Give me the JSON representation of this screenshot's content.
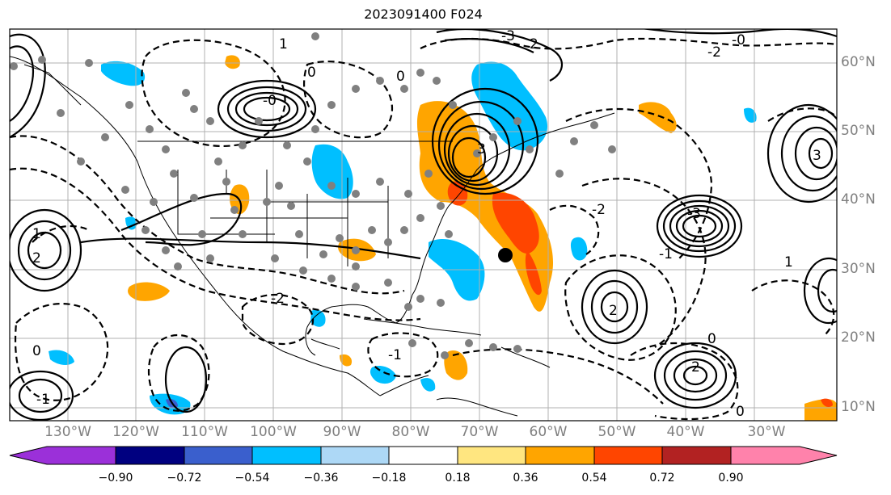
{
  "title": "2023091400 F024",
  "lat_labels": [
    "60°N",
    "50°N",
    "40°N",
    "30°N",
    "20°N",
    "10°N"
  ],
  "lon_labels": [
    "130°W",
    "120°W",
    "110°W",
    "100°W",
    "90°W",
    "80°W",
    "70°W",
    "60°W",
    "50°W",
    "40°W",
    "30°W"
  ],
  "contour_labels": {
    "c1": "0",
    "c2": "0",
    "c3": "-0",
    "c4": "-2",
    "c5": "2",
    "c6": "-3",
    "c7": "3",
    "c8": "-2",
    "c9": "1",
    "c10": "-1",
    "c11": "0",
    "c12": "0",
    "c13": "-2",
    "c14": "2",
    "c15": "-3",
    "c16": "-1",
    "c17": "2",
    "c18": "0",
    "c19": "2",
    "c20": "-0",
    "c21": "1",
    "c22": "1",
    "c23": "3",
    "c24": "-1"
  },
  "colorbar": {
    "colors": [
      "#9b30d9",
      "#000080",
      "#3a5fcd",
      "#00bfff",
      "#add8f6",
      "#ffffff",
      "#ffe680",
      "#ffa500",
      "#ff4500",
      "#b22222",
      "#ff82ab"
    ],
    "ticks": [
      "−0.90",
      "−0.72",
      "−0.54",
      "−0.36",
      "−0.18",
      "0.18",
      "0.36",
      "0.54",
      "0.72",
      "0.90"
    ]
  },
  "marker": "storm-center"
}
